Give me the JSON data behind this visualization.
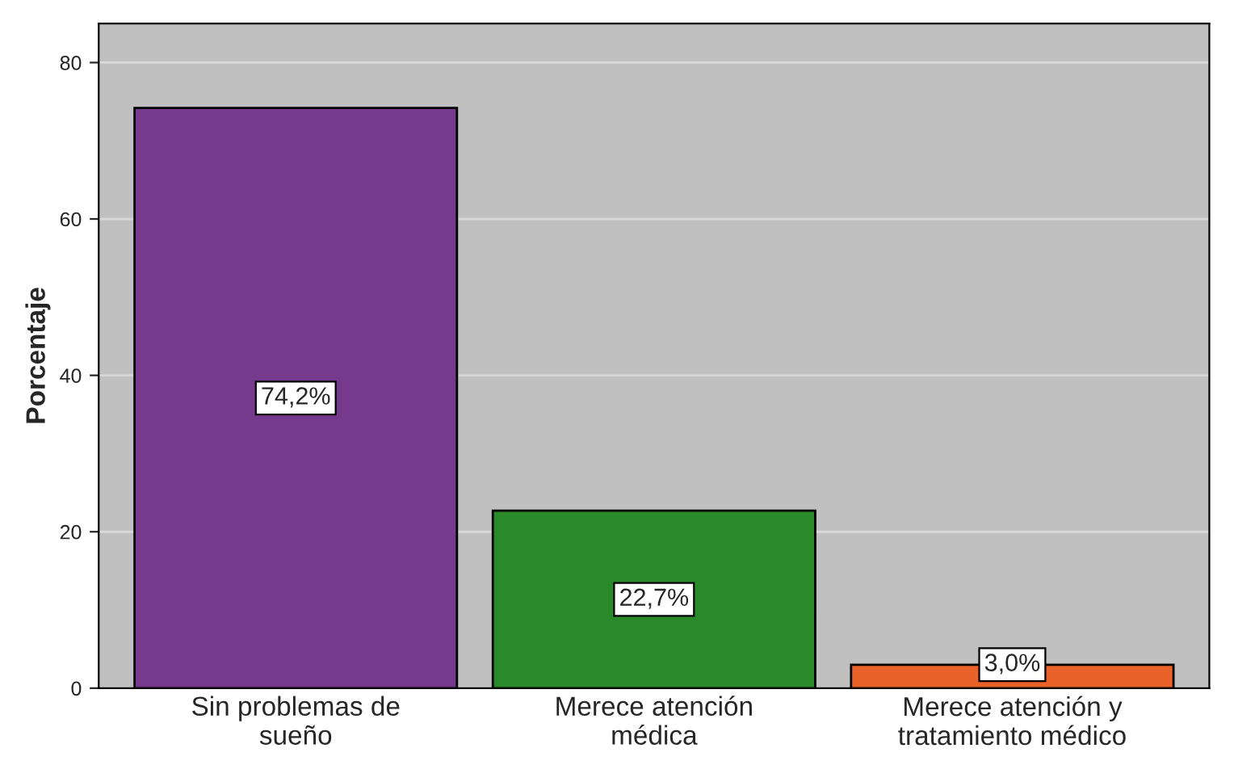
{
  "chart_data": {
    "type": "bar",
    "ylabel": "Porcentaje",
    "categories": [
      "Sin problemas de\nsueño",
      "Merece atención\nmédica",
      "Merece atención y\ntratamiento médico"
    ],
    "values": [
      74.2,
      22.7,
      3.0
    ],
    "value_labels": [
      "74,2%",
      "22,7%",
      "3,0%"
    ],
    "colors": [
      "#753a8c",
      "#2a8a2a",
      "#e8622a"
    ],
    "ylim": [
      0,
      85
    ],
    "yticks": [
      0,
      20,
      40,
      60,
      80
    ],
    "grid": "y",
    "legend": false
  }
}
